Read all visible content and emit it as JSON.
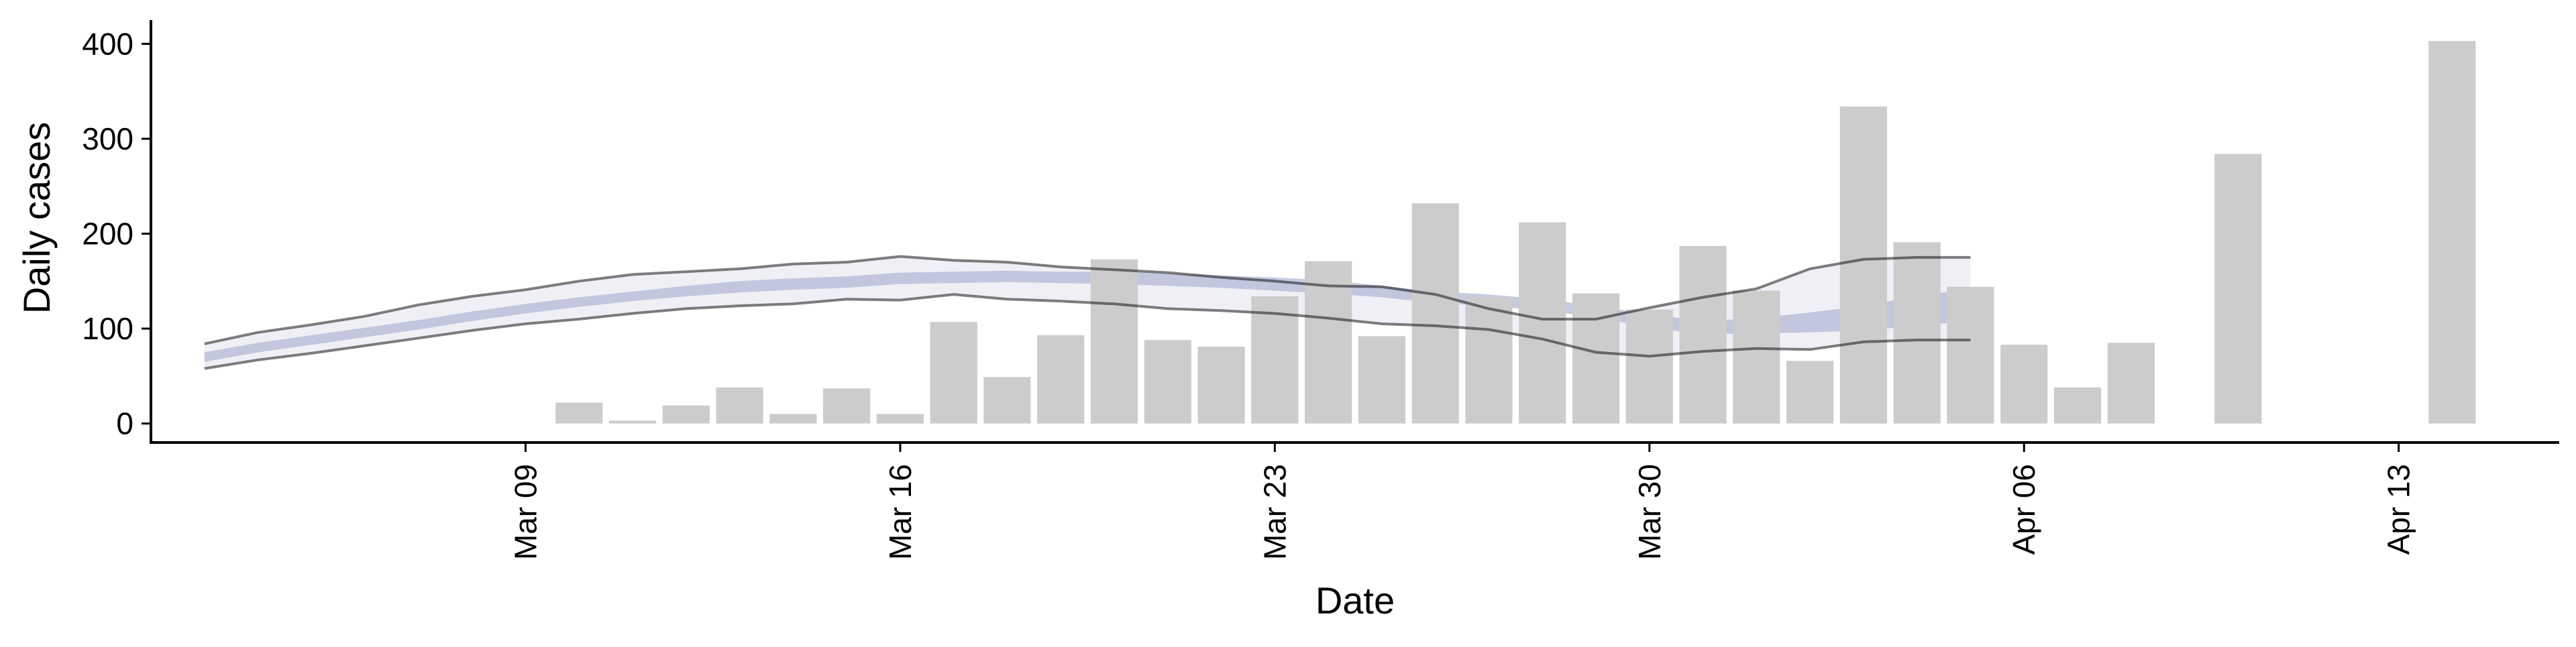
{
  "chart_data": {
    "type": "bar",
    "title": "",
    "xlabel": "Date",
    "ylabel": "Daily cases",
    "ylim": [
      -20,
      425
    ],
    "xlim": [
      "2020-03-02",
      "2020-04-16"
    ],
    "yticks": [
      0,
      100,
      200,
      300,
      400
    ],
    "xticks": [
      {
        "date": "2020-03-09",
        "label": "Mar 09"
      },
      {
        "date": "2020-03-16",
        "label": "Mar 16"
      },
      {
        "date": "2020-03-23",
        "label": "Mar 23"
      },
      {
        "date": "2020-03-30",
        "label": "Mar 30"
      },
      {
        "date": "2020-04-06",
        "label": "Apr 06"
      },
      {
        "date": "2020-04-13",
        "label": "Apr 13"
      }
    ],
    "grid": false,
    "legend": "none",
    "bar_color": "#cccccc",
    "ribbon_color": "#b3bad4",
    "bars": [
      {
        "date": "2020-03-10",
        "value": 22
      },
      {
        "date": "2020-03-11",
        "value": 3
      },
      {
        "date": "2020-03-12",
        "value": 19
      },
      {
        "date": "2020-03-13",
        "value": 38
      },
      {
        "date": "2020-03-14",
        "value": 10
      },
      {
        "date": "2020-03-15",
        "value": 37
      },
      {
        "date": "2020-03-16",
        "value": 10
      },
      {
        "date": "2020-03-17",
        "value": 107
      },
      {
        "date": "2020-03-18",
        "value": 49
      },
      {
        "date": "2020-03-19",
        "value": 93
      },
      {
        "date": "2020-03-20",
        "value": 173
      },
      {
        "date": "2020-03-21",
        "value": 88
      },
      {
        "date": "2020-03-22",
        "value": 81
      },
      {
        "date": "2020-03-23",
        "value": 134
      },
      {
        "date": "2020-03-24",
        "value": 171
      },
      {
        "date": "2020-03-25",
        "value": 92
      },
      {
        "date": "2020-03-26",
        "value": 232
      },
      {
        "date": "2020-03-27",
        "value": 133
      },
      {
        "date": "2020-03-28",
        "value": 212
      },
      {
        "date": "2020-03-29",
        "value": 137
      },
      {
        "date": "2020-03-30",
        "value": 120
      },
      {
        "date": "2020-03-31",
        "value": 187
      },
      {
        "date": "2020-04-01",
        "value": 140
      },
      {
        "date": "2020-04-02",
        "value": 66
      },
      {
        "date": "2020-04-03",
        "value": 334
      },
      {
        "date": "2020-04-04",
        "value": 191
      },
      {
        "date": "2020-04-05",
        "value": 144
      },
      {
        "date": "2020-04-06",
        "value": 83
      },
      {
        "date": "2020-04-07",
        "value": 38
      },
      {
        "date": "2020-04-08",
        "value": 85
      },
      {
        "date": "2020-04-10",
        "value": 284
      },
      {
        "date": "2020-04-14",
        "value": 403
      }
    ],
    "estimate": {
      "dates": [
        "2020-03-03",
        "2020-03-04",
        "2020-03-05",
        "2020-03-06",
        "2020-03-07",
        "2020-03-08",
        "2020-03-09",
        "2020-03-10",
        "2020-03-11",
        "2020-03-12",
        "2020-03-13",
        "2020-03-14",
        "2020-03-15",
        "2020-03-16",
        "2020-03-17",
        "2020-03-18",
        "2020-03-19",
        "2020-03-20",
        "2020-03-21",
        "2020-03-22",
        "2020-03-23",
        "2020-03-24",
        "2020-03-25",
        "2020-03-26",
        "2020-03-27",
        "2020-03-28",
        "2020-03-29",
        "2020-03-30",
        "2020-03-31",
        "2020-04-01",
        "2020-04-02",
        "2020-04-03",
        "2020-04-04",
        "2020-04-05"
      ],
      "median": [
        70,
        80,
        88,
        96,
        104,
        113,
        121,
        128,
        134,
        140,
        144,
        147,
        149,
        153,
        154,
        155,
        154,
        154,
        152,
        150,
        147,
        144,
        139,
        133,
        130,
        125,
        118,
        108,
        101,
        103,
        106,
        110,
        118,
        125
      ],
      "inner_low": [
        65,
        75,
        83,
        91,
        99,
        108,
        116,
        123,
        129,
        134,
        138,
        141,
        143,
        147,
        148,
        149,
        148,
        147,
        145,
        143,
        140,
        137,
        133,
        127,
        124,
        119,
        112,
        101,
        94,
        95,
        96,
        98,
        103,
        108
      ],
      "inner_high": [
        75,
        85,
        93,
        101,
        109,
        118,
        126,
        133,
        139,
        145,
        150,
        153,
        155,
        159,
        160,
        161,
        160,
        160,
        158,
        156,
        154,
        151,
        145,
        139,
        136,
        131,
        124,
        115,
        108,
        111,
        117,
        124,
        134,
        142
      ],
      "outer_low": [
        58,
        67,
        74,
        82,
        90,
        98,
        105,
        110,
        116,
        121,
        124,
        126,
        131,
        130,
        136,
        131,
        129,
        126,
        121,
        119,
        116,
        111,
        105,
        103,
        99,
        89,
        75,
        71,
        76,
        79,
        78,
        86,
        88,
        88
      ],
      "outer_high": [
        84,
        96,
        104,
        113,
        125,
        134,
        141,
        150,
        157,
        160,
        163,
        168,
        170,
        176,
        172,
        170,
        165,
        162,
        159,
        154,
        150,
        145,
        144,
        136,
        121,
        110,
        110,
        122,
        133,
        142,
        163,
        173,
        175,
        175
      ]
    }
  }
}
